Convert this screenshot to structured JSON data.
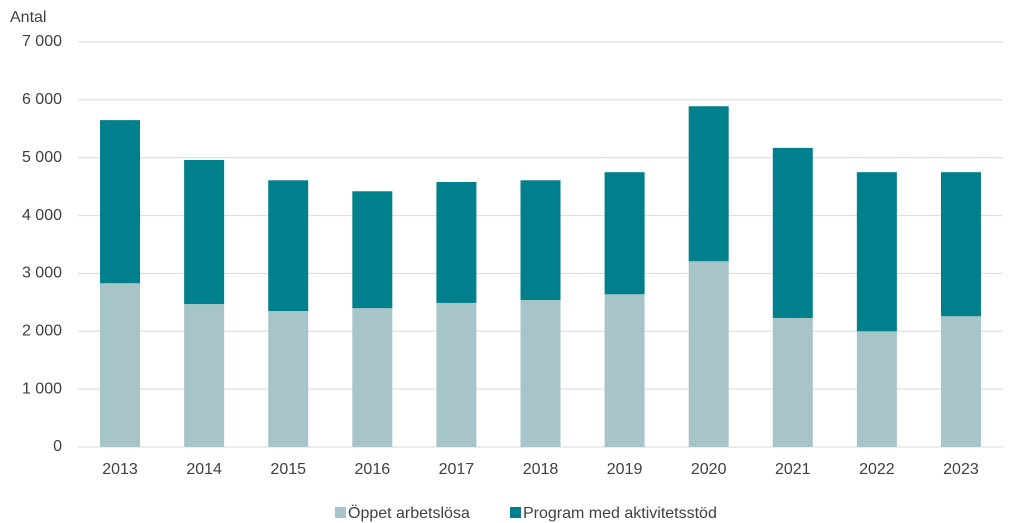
{
  "chart_data": {
    "type": "stacked_bar",
    "y_label": "Antal",
    "categories": [
      "2013",
      "2014",
      "2015",
      "2016",
      "2017",
      "2018",
      "2019",
      "2020",
      "2021",
      "2022",
      "2023"
    ],
    "series": [
      {
        "name": "Öppet arbetslösa",
        "color": "#a7c4c8",
        "values": [
          2830,
          2470,
          2350,
          2400,
          2490,
          2540,
          2640,
          3210,
          2230,
          2000,
          2260
        ]
      },
      {
        "name": "Program med aktivitetsstöd",
        "color": "#007f8c",
        "values": [
          2820,
          2490,
          2260,
          2020,
          2090,
          2070,
          2110,
          2680,
          2940,
          2750,
          2490
        ]
      }
    ],
    "ylim": [
      0,
      7000
    ],
    "yticks": [
      0,
      {
        "value": 1000,
        "label": "1 000"
      },
      {
        "value": 2000,
        "label": "2 000"
      },
      {
        "value": 3000,
        "label": "3 000"
      },
      {
        "value": 4000,
        "label": "4 000"
      },
      {
        "value": 5000,
        "label": "5 000"
      },
      {
        "value": 6000,
        "label": "6 000"
      },
      {
        "value": 7000,
        "label": "7 000"
      }
    ],
    "grid": true,
    "legend": "bottom"
  }
}
